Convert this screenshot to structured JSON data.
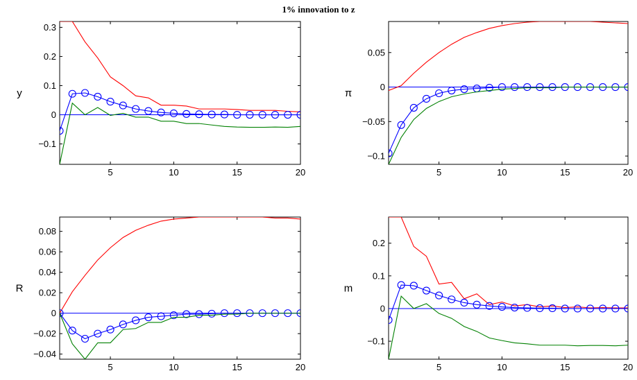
{
  "figure_title": "1% innovation to z",
  "colors": {
    "upper": "#ff0000",
    "median": "#0000ff",
    "lower": "#008000",
    "zero": "#0000ff",
    "axis": "#000000"
  },
  "chart_data": [
    {
      "type": "line",
      "ylabel": "y",
      "xlim": [
        1,
        20
      ],
      "ylim": [
        -0.17,
        0.32
      ],
      "xticks": [
        5,
        10,
        15,
        20
      ],
      "yticks": [
        -0.1,
        0,
        0.1,
        0.2,
        0.3
      ],
      "ytick_labels": [
        "−0.1",
        "0",
        "0.1",
        "0.2",
        "0.3"
      ],
      "x": [
        1,
        2,
        3,
        4,
        5,
        6,
        7,
        8,
        9,
        10,
        11,
        12,
        13,
        14,
        15,
        16,
        17,
        18,
        19,
        20
      ],
      "series": [
        {
          "role": "upper",
          "values": [
            0.32,
            0.32,
            0.25,
            0.195,
            0.13,
            0.1,
            0.065,
            0.058,
            0.033,
            0.033,
            0.03,
            0.02,
            0.02,
            0.02,
            0.018,
            0.015,
            0.015,
            0.015,
            0.012,
            0.01
          ]
        },
        {
          "role": "median",
          "marker": "circle",
          "values": [
            -0.055,
            0.072,
            0.075,
            0.062,
            0.045,
            0.032,
            0.02,
            0.013,
            0.008,
            0.005,
            0.003,
            0.002,
            0.001,
            0.001,
            0.0,
            0.0,
            0.0,
            0.0,
            0.0,
            0.0
          ]
        },
        {
          "role": "lower",
          "values": [
            -0.17,
            0.04,
            0.0,
            0.025,
            -0.002,
            0.005,
            -0.008,
            -0.008,
            -0.022,
            -0.022,
            -0.03,
            -0.03,
            -0.035,
            -0.04,
            -0.042,
            -0.043,
            -0.043,
            -0.042,
            -0.043,
            -0.04
          ]
        }
      ]
    },
    {
      "type": "line",
      "ylabel": "π",
      "xlim": [
        1,
        20
      ],
      "ylim": [
        -0.112,
        0.095
      ],
      "xticks": [
        5,
        10,
        15,
        20
      ],
      "yticks": [
        -0.1,
        -0.05,
        0,
        0.05
      ],
      "ytick_labels": [
        "−0.1",
        "−0.05",
        "0",
        "0.05"
      ],
      "x": [
        1,
        2,
        3,
        4,
        5,
        6,
        7,
        8,
        9,
        10,
        11,
        12,
        13,
        14,
        15,
        16,
        17,
        18,
        19,
        20
      ],
      "series": [
        {
          "role": "upper",
          "values": [
            -0.005,
            0.002,
            0.02,
            0.036,
            0.05,
            0.062,
            0.072,
            0.079,
            0.085,
            0.089,
            0.092,
            0.094,
            0.095,
            0.095,
            0.095,
            0.095,
            0.095,
            0.094,
            0.093,
            0.092
          ]
        },
        {
          "role": "median",
          "marker": "circle",
          "values": [
            -0.096,
            -0.055,
            -0.03,
            -0.017,
            -0.009,
            -0.005,
            -0.003,
            -0.002,
            -0.001,
            0.0,
            0.0,
            0.0,
            0.0,
            0.0,
            0.0,
            0.0,
            0.0,
            0.0,
            0.0,
            0.0
          ]
        },
        {
          "role": "lower",
          "values": [
            -0.112,
            -0.073,
            -0.047,
            -0.031,
            -0.021,
            -0.014,
            -0.01,
            -0.007,
            -0.005,
            -0.003,
            -0.002,
            -0.001,
            -0.001,
            -0.001,
            0.0,
            0.0,
            0.0,
            0.0,
            0.0,
            0.0
          ]
        }
      ]
    },
    {
      "type": "line",
      "ylabel": "R",
      "xlim": [
        1,
        20
      ],
      "ylim": [
        -0.045,
        0.094
      ],
      "xticks": [
        5,
        10,
        15,
        20
      ],
      "yticks": [
        -0.04,
        -0.02,
        0,
        0.02,
        0.04,
        0.06,
        0.08
      ],
      "ytick_labels": [
        "−0.04",
        "−0.02",
        "0",
        "0.02",
        "0.04",
        "0.06",
        "0.08"
      ],
      "x": [
        1,
        2,
        3,
        4,
        5,
        6,
        7,
        8,
        9,
        10,
        11,
        12,
        13,
        14,
        15,
        16,
        17,
        18,
        19,
        20
      ],
      "series": [
        {
          "role": "upper",
          "values": [
            0.0,
            0.021,
            0.037,
            0.052,
            0.064,
            0.074,
            0.081,
            0.086,
            0.09,
            0.092,
            0.093,
            0.094,
            0.094,
            0.094,
            0.094,
            0.094,
            0.094,
            0.093,
            0.093,
            0.092
          ]
        },
        {
          "role": "median",
          "marker": "circle",
          "values": [
            0.0,
            -0.017,
            -0.025,
            -0.02,
            -0.016,
            -0.011,
            -0.007,
            -0.004,
            -0.003,
            -0.002,
            -0.001,
            -0.001,
            -0.0005,
            0.0,
            0.0,
            0.0,
            0.0,
            0.0,
            0.0,
            0.0
          ]
        },
        {
          "role": "lower",
          "values": [
            0.0,
            -0.03,
            -0.045,
            -0.029,
            -0.029,
            -0.016,
            -0.015,
            -0.009,
            -0.009,
            -0.004,
            -0.004,
            -0.002,
            -0.002,
            -0.001,
            -0.001,
            0.0,
            0.0,
            0.0,
            0.0,
            0.0
          ]
        }
      ]
    },
    {
      "type": "line",
      "ylabel": "m",
      "xlim": [
        1,
        20
      ],
      "ylim": [
        -0.155,
        0.28
      ],
      "xticks": [
        5,
        10,
        15,
        20
      ],
      "yticks": [
        -0.1,
        0,
        0.1,
        0.2
      ],
      "ytick_labels": [
        "−0.1",
        "0",
        "0.1",
        "0.2"
      ],
      "x": [
        1,
        2,
        3,
        4,
        5,
        6,
        7,
        8,
        9,
        10,
        11,
        12,
        13,
        14,
        15,
        16,
        17,
        18,
        19,
        20
      ],
      "series": [
        {
          "role": "upper",
          "values": [
            0.28,
            0.28,
            0.19,
            0.16,
            0.075,
            0.08,
            0.03,
            0.045,
            0.012,
            0.02,
            0.008,
            0.012,
            0.005,
            0.008,
            0.003,
            0.005,
            0.002,
            0.003,
            0.002,
            0.002
          ]
        },
        {
          "role": "median",
          "marker": "circle",
          "values": [
            -0.035,
            0.072,
            0.07,
            0.055,
            0.04,
            0.028,
            0.018,
            0.012,
            0.008,
            0.005,
            0.003,
            0.002,
            0.001,
            0.001,
            0.0,
            0.0,
            0.0,
            0.0,
            0.0,
            0.0
          ]
        },
        {
          "role": "lower",
          "values": [
            -0.155,
            0.038,
            0.0,
            0.015,
            -0.015,
            -0.03,
            -0.055,
            -0.07,
            -0.09,
            -0.098,
            -0.105,
            -0.108,
            -0.112,
            -0.112,
            -0.112,
            -0.114,
            -0.113,
            -0.113,
            -0.114,
            -0.112
          ]
        }
      ]
    }
  ]
}
